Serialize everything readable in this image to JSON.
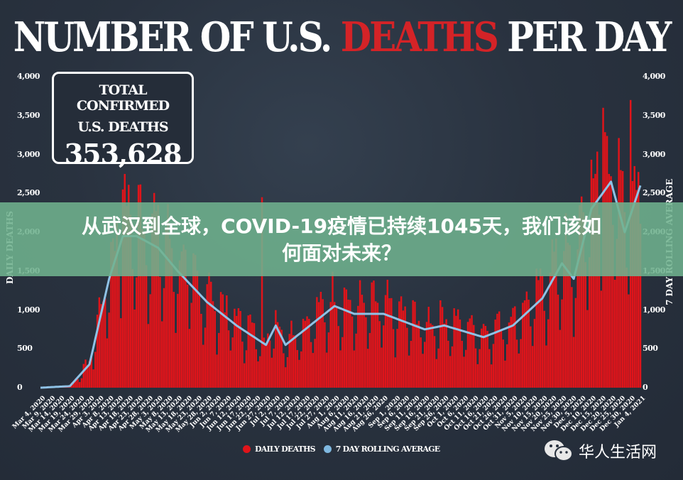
{
  "title": {
    "part1": "NUMBER OF U.S. ",
    "highlight": "DEATHS",
    "part2": " PER DAY",
    "highlight_color": "#d42327"
  },
  "total_box": {
    "line1": "TOTAL CONFIRMED",
    "line2": "U.S. DEATHS",
    "value": "353,628"
  },
  "axes": {
    "left_label": "DAILY DEATHS",
    "right_label": "7 DAY ROLLING AVERAGE",
    "y_ticks": [
      "4,000",
      "3,500",
      "3,000",
      "2,500",
      "2,000",
      "1,500",
      "1,000",
      "500",
      "0"
    ]
  },
  "legend": {
    "items": [
      {
        "label": "DAILY DEATHS",
        "color": "#e0141a"
      },
      {
        "label": "7 DAY ROLLING AVERAGE",
        "color": "#7fb8e0"
      }
    ]
  },
  "banner": {
    "line1": "从武汉到全球，COVID-19疫情已持续1045天，我们该如",
    "line2": "何面对未来？",
    "color": "#70b28e"
  },
  "watermark": {
    "text": "华人生活网"
  },
  "chart_data": {
    "type": "bar",
    "title": "NUMBER OF U.S. DEATHS PER DAY",
    "xlabel": "",
    "ylabel": "DAILY DEATHS",
    "y2label": "7 DAY ROLLING AVERAGE",
    "ylim": [
      0,
      4000
    ],
    "grid": false,
    "legend_position": "bottom",
    "x_tick_labels": [
      "Mar 4, 2020",
      "Mar 9, 2020",
      "Mar 14, 2020",
      "Mar 19, 2020",
      "Mar 24, 2020",
      "Mar 29, 2020",
      "Apr 3, 2020",
      "Apr 8, 2020",
      "Apr 13, 2020",
      "Apr 18, 2020",
      "Apr 23, 2020",
      "Apr 28, 2020",
      "May 3, 2020",
      "May 8, 2020",
      "May 13, 2020",
      "May 18, 2020",
      "May 23, 2020",
      "May 28, 2020",
      "Jun 2, 2020",
      "Jun 7, 2020",
      "Jun 12, 2020",
      "Jun 17, 2020",
      "Jun 22, 2020",
      "Jun 27, 2020",
      "Jul 2, 2020",
      "Jul 7, 2020",
      "Jul 12, 2020",
      "Jul 17, 2020",
      "Jul 22, 2020",
      "Jul 27, 2020",
      "Aug 1, 2020",
      "Aug 6, 2020",
      "Aug 11, 2020",
      "Aug 16, 2020",
      "Aug 21, 2020",
      "Aug 26, 2020",
      "Sep 1, 2020",
      "Sep 6, 2020",
      "Sep 11, 2020",
      "Sep 16, 2020",
      "Sep 21, 2020",
      "Sep 26, 2020",
      "Oct 1, 2020",
      "Oct 6, 2020",
      "Oct 11, 2020",
      "Oct 16, 2020",
      "Oct 21, 2020",
      "Oct 26, 2020",
      "Oct 31, 2020",
      "Nov 5, 2020",
      "Nov 10, 2020",
      "Nov 15, 2020",
      "Nov 20, 2020",
      "Nov 25, 2020",
      "Nov 30, 2020",
      "Dec 5, 2020",
      "Dec 10, 2020",
      "Dec 15, 2020",
      "Dec 20, 2020",
      "Dec 25, 2020",
      "Dec 30, 2020",
      "Jan 4, 2021"
    ],
    "rolling_average_keypoints": [
      {
        "x": "Mar 4, 2020",
        "y": 0
      },
      {
        "x": "Mar 19, 2020",
        "y": 20
      },
      {
        "x": "Mar 29, 2020",
        "y": 300
      },
      {
        "x": "Apr 8, 2020",
        "y": 1400
      },
      {
        "x": "Apr 15, 2020",
        "y": 1950
      },
      {
        "x": "Apr 22, 2020",
        "y": 1950
      },
      {
        "x": "May 3, 2020",
        "y": 1800
      },
      {
        "x": "May 13, 2020",
        "y": 1500
      },
      {
        "x": "May 28, 2020",
        "y": 1100
      },
      {
        "x": "Jun 12, 2020",
        "y": 800
      },
      {
        "x": "Jun 27, 2020",
        "y": 550
      },
      {
        "x": "Jul 2, 2020",
        "y": 800
      },
      {
        "x": "Jul 7, 2020",
        "y": 550
      },
      {
        "x": "Jul 22, 2020",
        "y": 850
      },
      {
        "x": "Aug 1, 2020",
        "y": 1050
      },
      {
        "x": "Aug 11, 2020",
        "y": 950
      },
      {
        "x": "Aug 26, 2020",
        "y": 950
      },
      {
        "x": "Sep 16, 2020",
        "y": 750
      },
      {
        "x": "Sep 26, 2020",
        "y": 800
      },
      {
        "x": "Oct 16, 2020",
        "y": 650
      },
      {
        "x": "Oct 31, 2020",
        "y": 800
      },
      {
        "x": "Nov 15, 2020",
        "y": 1150
      },
      {
        "x": "Nov 25, 2020",
        "y": 1600
      },
      {
        "x": "Dec 1, 2020",
        "y": 1400
      },
      {
        "x": "Dec 10, 2020",
        "y": 2300
      },
      {
        "x": "Dec 20, 2020",
        "y": 2650
      },
      {
        "x": "Dec 27, 2020",
        "y": 2000
      },
      {
        "x": "Jan 4, 2021",
        "y": 2600
      }
    ],
    "daily_peaks": [
      {
        "x": "Apr 15, 2020",
        "y": 2550
      },
      {
        "x": "Jun 25, 2020",
        "y": 2450
      },
      {
        "x": "Dec 16, 2020",
        "y": 3600
      },
      {
        "x": "Dec 30, 2020",
        "y": 3700
      }
    ],
    "series": [
      {
        "name": "DAILY DEATHS",
        "color": "#e0141a",
        "type": "bar"
      },
      {
        "name": "7 DAY ROLLING AVERAGE",
        "color": "#7fb8e0",
        "type": "line"
      }
    ]
  }
}
